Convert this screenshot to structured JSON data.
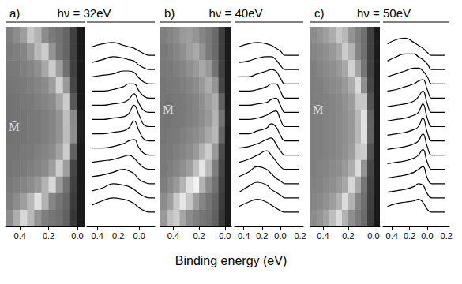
{
  "xlabel": "Binding energy (eV)",
  "chart_data": [
    {
      "type": "heatmap",
      "panel_label": "a)",
      "title": "hν = 32eV",
      "x": [
        0.475,
        0.425,
        0.375,
        0.325,
        0.275,
        0.225,
        0.175,
        0.125,
        0.075,
        0.025,
        -0.025
      ],
      "cells": [
        [
          50,
          55,
          62,
          78,
          70,
          55,
          48,
          45,
          40,
          25,
          10
        ],
        [
          48,
          50,
          52,
          60,
          72,
          80,
          58,
          46,
          40,
          25,
          10
        ],
        [
          47,
          48,
          50,
          52,
          56,
          65,
          80,
          62,
          44,
          26,
          10
        ],
        [
          46,
          47,
          48,
          50,
          52,
          55,
          62,
          82,
          60,
          28,
          10
        ],
        [
          45,
          46,
          47,
          48,
          50,
          52,
          55,
          65,
          80,
          35,
          10
        ],
        [
          45,
          46,
          46,
          47,
          48,
          50,
          52,
          58,
          75,
          55,
          12
        ],
        [
          45,
          46,
          46,
          47,
          48,
          50,
          52,
          58,
          74,
          56,
          12
        ],
        [
          46,
          46,
          47,
          48,
          50,
          52,
          55,
          64,
          80,
          38,
          10
        ],
        [
          46,
          47,
          48,
          50,
          52,
          55,
          62,
          80,
          62,
          28,
          10
        ],
        [
          48,
          50,
          52,
          55,
          60,
          70,
          85,
          60,
          45,
          26,
          10
        ],
        [
          50,
          55,
          62,
          72,
          88,
          70,
          52,
          46,
          40,
          24,
          10
        ],
        [
          55,
          68,
          85,
          72,
          58,
          50,
          46,
          44,
          38,
          22,
          10
        ]
      ],
      "xlim": [
        0.5,
        -0.05
      ],
      "xticks": [
        0.4,
        0.2,
        {
          "value": 0,
          "label": "0.0"
        }
      ],
      "annotations": [
        {
          "text": "M̄",
          "x": 0.44,
          "y": 5.5
        }
      ]
    },
    {
      "type": "line",
      "color": "#000000",
      "x": [
        0.45,
        0.35,
        0.25,
        0.15,
        0.1,
        0.05,
        0,
        -0.05,
        -0.1,
        -0.15
      ],
      "curves": [
        [
          1.5,
          1.8,
          2.0,
          1.9,
          1.8,
          1.6,
          1.3,
          1.1,
          1.0,
          1.0
        ],
        [
          2.5,
          2.7,
          3.0,
          2.9,
          2.8,
          2.6,
          2.3,
          2.1,
          2.0,
          2.0
        ],
        [
          3.5,
          3.6,
          3.8,
          4.0,
          3.9,
          3.7,
          3.3,
          3.1,
          3.0,
          3.0
        ],
        [
          4.5,
          4.6,
          4.7,
          4.9,
          5.0,
          4.8,
          4.4,
          4.1,
          4.0,
          4.0
        ],
        [
          5.5,
          5.5,
          5.6,
          5.8,
          6.0,
          6.1,
          5.5,
          5.1,
          5.0,
          5.0
        ],
        [
          6.5,
          6.5,
          6.6,
          6.7,
          6.9,
          7.4,
          6.7,
          6.1,
          6.0,
          6.0
        ],
        [
          7.5,
          7.5,
          7.6,
          7.7,
          7.9,
          8.5,
          7.8,
          7.1,
          7.0,
          7.0
        ],
        [
          8.5,
          8.5,
          8.6,
          8.7,
          8.9,
          9.3,
          8.6,
          8.1,
          8.0,
          8.0
        ],
        [
          9.5,
          9.5,
          9.6,
          9.8,
          10.0,
          10.0,
          9.5,
          9.1,
          9.0,
          9.0
        ],
        [
          10.5,
          10.6,
          10.7,
          10.9,
          10.9,
          10.8,
          10.4,
          10.1,
          10.0,
          10.0
        ],
        [
          11.5,
          11.7,
          11.9,
          11.8,
          11.7,
          11.6,
          11.3,
          11.1,
          11.0,
          11.0
        ],
        [
          12.6,
          12.8,
          12.9,
          12.7,
          12.6,
          12.5,
          12.3,
          12.1,
          12.0,
          12.0
        ]
      ],
      "xlim": [
        0.5,
        -0.15
      ],
      "xticks": [
        0.4,
        0.2,
        {
          "value": 0,
          "label": "0.0"
        }
      ],
      "ylim": [
        0,
        14
      ],
      "tick_labels": "x"
    },
    {
      "type": "heatmap",
      "panel_label": "b)",
      "title": "hν = 40eV",
      "x": [
        0.475,
        0.425,
        0.375,
        0.325,
        0.275,
        0.225,
        0.175,
        0.125,
        0.075,
        0.025,
        -0.025
      ],
      "cells": [
        [
          50,
          52,
          55,
          60,
          62,
          58,
          52,
          48,
          42,
          25,
          10
        ],
        [
          48,
          50,
          52,
          56,
          62,
          66,
          58,
          48,
          42,
          25,
          10
        ],
        [
          47,
          48,
          50,
          52,
          56,
          60,
          66,
          60,
          45,
          26,
          10
        ],
        [
          46,
          47,
          48,
          50,
          52,
          55,
          60,
          68,
          58,
          28,
          10
        ],
        [
          46,
          46,
          47,
          48,
          50,
          52,
          56,
          62,
          68,
          38,
          10
        ],
        [
          46,
          46,
          47,
          48,
          50,
          52,
          55,
          60,
          70,
          45,
          12
        ],
        [
          46,
          47,
          48,
          50,
          52,
          55,
          58,
          66,
          72,
          40,
          10
        ],
        [
          47,
          48,
          50,
          52,
          55,
          60,
          70,
          80,
          60,
          30,
          10
        ],
        [
          48,
          50,
          52,
          56,
          62,
          75,
          90,
          72,
          50,
          28,
          10
        ],
        [
          50,
          54,
          60,
          70,
          88,
          95,
          70,
          55,
          45,
          26,
          10
        ],
        [
          55,
          62,
          78,
          90,
          78,
          62,
          52,
          46,
          40,
          24,
          10
        ],
        [
          60,
          75,
          80,
          65,
          55,
          50,
          46,
          44,
          38,
          22,
          10
        ]
      ],
      "xlim": [
        0.5,
        -0.05
      ],
      "xticks": [
        0.4,
        0.2,
        {
          "value": 0,
          "label": "0.0"
        }
      ],
      "annotations": [
        {
          "text": "M̄",
          "x": 0.44,
          "y": 4.5
        }
      ]
    },
    {
      "type": "line",
      "color": "#000000",
      "x": [
        0.45,
        0.35,
        0.25,
        0.15,
        0.1,
        0.05,
        0,
        -0.05,
        -0.1,
        -0.2
      ],
      "curves": [
        [
          1.4,
          1.7,
          1.9,
          1.7,
          1.5,
          1.3,
          1.1,
          1.0,
          1.0,
          1.0
        ],
        [
          2.4,
          2.8,
          3.1,
          2.9,
          2.6,
          2.4,
          2.2,
          2.0,
          2.0,
          2.0
        ],
        [
          3.5,
          3.8,
          4.2,
          4.0,
          3.7,
          3.4,
          3.2,
          3.0,
          3.0,
          3.0
        ],
        [
          4.5,
          4.7,
          5.0,
          5.3,
          5.0,
          4.6,
          4.2,
          4.0,
          4.0,
          4.0
        ],
        [
          5.5,
          5.6,
          5.8,
          6.1,
          6.2,
          5.8,
          5.3,
          5.0,
          5.0,
          5.0
        ],
        [
          6.5,
          6.5,
          6.7,
          6.9,
          7.2,
          7.0,
          6.4,
          6.0,
          6.0,
          6.0
        ],
        [
          7.5,
          7.5,
          7.6,
          7.8,
          8.0,
          8.1,
          7.5,
          7.0,
          7.0,
          7.0
        ],
        [
          8.5,
          8.5,
          8.6,
          8.7,
          8.9,
          9.0,
          8.5,
          8.0,
          8.0,
          8.0
        ],
        [
          9.5,
          9.5,
          9.6,
          9.8,
          10.0,
          10.0,
          9.5,
          9.0,
          9.0,
          9.0
        ],
        [
          10.5,
          10.5,
          10.7,
          10.9,
          11.0,
          10.9,
          10.4,
          10.0,
          10.0,
          10.0
        ],
        [
          11.5,
          11.6,
          11.8,
          11.9,
          11.9,
          11.7,
          11.3,
          11.0,
          11.0,
          11.0
        ],
        [
          12.6,
          12.8,
          12.9,
          12.8,
          12.7,
          12.5,
          12.3,
          12.0,
          12.0,
          12.0
        ]
      ],
      "xlim": [
        0.5,
        -0.25
      ],
      "xticks": [
        0.4,
        0.2,
        {
          "value": 0,
          "label": "0.0"
        },
        -0.2
      ],
      "ylim": [
        0,
        14
      ],
      "tick_labels": "x"
    },
    {
      "type": "heatmap",
      "panel_label": "c)",
      "title": "hν = 50eV",
      "x": [
        0.475,
        0.425,
        0.375,
        0.325,
        0.275,
        0.225,
        0.175,
        0.125,
        0.075,
        0.025,
        -0.025
      ],
      "cells": [
        [
          55,
          58,
          62,
          68,
          78,
          72,
          58,
          50,
          44,
          26,
          10
        ],
        [
          52,
          54,
          56,
          60,
          66,
          80,
          70,
          52,
          44,
          26,
          10
        ],
        [
          50,
          52,
          54,
          56,
          60,
          66,
          82,
          64,
          46,
          26,
          10
        ],
        [
          50,
          50,
          52,
          54,
          56,
          60,
          68,
          85,
          56,
          28,
          10
        ],
        [
          50,
          50,
          51,
          52,
          54,
          57,
          62,
          78,
          78,
          32,
          10
        ],
        [
          50,
          50,
          51,
          52,
          54,
          56,
          60,
          72,
          88,
          38,
          10
        ],
        [
          50,
          50,
          51,
          52,
          54,
          56,
          60,
          72,
          88,
          38,
          10
        ],
        [
          50,
          50,
          51,
          52,
          54,
          57,
          62,
          78,
          80,
          32,
          10
        ],
        [
          50,
          51,
          52,
          54,
          56,
          60,
          68,
          86,
          58,
          28,
          10
        ],
        [
          51,
          52,
          54,
          56,
          60,
          66,
          84,
          66,
          46,
          26,
          10
        ],
        [
          52,
          54,
          57,
          62,
          70,
          86,
          70,
          52,
          44,
          25,
          10
        ],
        [
          55,
          58,
          64,
          74,
          86,
          70,
          56,
          48,
          42,
          24,
          10
        ]
      ],
      "xlim": [
        0.5,
        -0.05
      ],
      "xticks": [
        0.4,
        0.2,
        {
          "value": 0,
          "label": "0.0"
        }
      ],
      "annotations": [
        {
          "text": "M̄",
          "x": 0.44,
          "y": 4.5
        }
      ]
    },
    {
      "type": "line",
      "color": "#000000",
      "x": [
        0.45,
        0.35,
        0.25,
        0.15,
        0.1,
        0.05,
        0,
        -0.05,
        -0.1,
        -0.2
      ],
      "curves": [
        [
          1.4,
          1.6,
          1.7,
          1.8,
          1.9,
          1.7,
          1.2,
          1.0,
          1.0,
          1.0
        ],
        [
          2.4,
          2.5,
          2.6,
          2.8,
          3.0,
          2.9,
          2.3,
          2.0,
          2.0,
          2.0
        ],
        [
          3.4,
          3.5,
          3.6,
          3.8,
          4.0,
          4.2,
          3.4,
          3.0,
          3.0,
          3.0
        ],
        [
          4.4,
          4.5,
          4.6,
          4.8,
          5.0,
          5.4,
          4.5,
          4.0,
          4.0,
          4.0
        ],
        [
          5.4,
          5.5,
          5.6,
          5.8,
          6.0,
          6.5,
          5.6,
          5.0,
          5.0,
          5.0
        ],
        [
          6.4,
          6.5,
          6.6,
          6.8,
          7.0,
          7.6,
          6.6,
          6.0,
          6.0,
          6.0
        ],
        [
          7.4,
          7.5,
          7.6,
          7.8,
          8.0,
          8.6,
          7.6,
          7.0,
          7.0,
          7.0
        ],
        [
          8.4,
          8.5,
          8.6,
          8.8,
          9.1,
          9.5,
          8.6,
          8.0,
          8.0,
          8.0
        ],
        [
          9.5,
          9.6,
          9.8,
          10.0,
          10.2,
          10.3,
          9.6,
          9.0,
          9.0,
          9.0
        ],
        [
          10.5,
          10.7,
          10.9,
          11.1,
          11.1,
          10.9,
          10.5,
          10.0,
          10.0,
          10.0
        ],
        [
          11.6,
          11.9,
          12.1,
          12.1,
          11.9,
          11.7,
          11.4,
          11.0,
          11.0,
          11.0
        ],
        [
          12.8,
          13.1,
          13.2,
          12.9,
          12.7,
          12.5,
          12.2,
          12.0,
          12.0,
          12.0
        ]
      ],
      "xlim": [
        0.5,
        -0.25
      ],
      "xticks": [
        0.4,
        0.2,
        {
          "value": 0,
          "label": "0.0"
        },
        -0.2
      ],
      "ylim": [
        0,
        14
      ],
      "tick_labels": "x"
    }
  ]
}
